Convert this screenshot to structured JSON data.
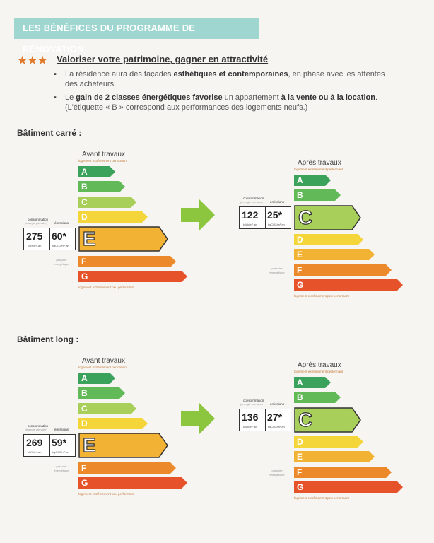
{
  "banner": "LES BÉNÉFICES DU PROGRAMME DE RÉNOVATION",
  "stars": "★★★",
  "section_title": "Valoriser votre patrimoine, gagner en attractivité",
  "bullet1": {
    "pre": "La résidence aura des façades ",
    "bold": "esthétiques et contemporaines",
    "post": ", en phase avec les attentes des acheteurs."
  },
  "bullet2": {
    "pre": "Le ",
    "bold1": "gain de 2 classes énergétiques favorise",
    "mid": " un appartement ",
    "bold2": "à la vente ou à la location",
    "post": ". (L'étiquette « B » correspond aux performances des logements neufs.)"
  },
  "buildings": [
    {
      "title": "Bâtiment carré :",
      "before": {
        "caption": "Avant travaux",
        "top_label": "logement extrêmement performant",
        "bottom_label": "logement extrêmement peu performant",
        "consumption": "275",
        "emissions": "60*",
        "class": "E"
      },
      "after": {
        "caption": "Après travaux",
        "top_label": "logement extrêmement performant",
        "bottom_label": "logement extrêmement peu performant",
        "consumption": "122",
        "emissions": "25*",
        "class": "C"
      }
    },
    {
      "title": "Bâtiment long :",
      "before": {
        "caption": "Avant travaux",
        "top_label": "logement extrêmement performant",
        "bottom_label": "logement extrêmement peu performant",
        "consumption": "269",
        "emissions": "59*",
        "class": "E"
      },
      "after": {
        "caption": "Après travaux",
        "top_label": "logement extrêmement performant",
        "bottom_label": "logement extrêmement peu performant",
        "consumption": "136",
        "emissions": "27*",
        "class": "C"
      }
    }
  ],
  "labels": {
    "consommation": "consommation",
    "energie_primaire": "(énergie primaire)",
    "emissions": "émissions",
    "unit_kwh": "kWh/m².an",
    "unit_co2": "kgCO2/m².an",
    "passoire": "passoire",
    "energetique": "énergétique"
  },
  "classes": [
    "A",
    "B",
    "C",
    "D",
    "E",
    "F",
    "G"
  ],
  "class_colors": {
    "A": "#3aa25a",
    "B": "#62b957",
    "C": "#a8cf5a",
    "D": "#f4d53a",
    "E": "#f2b233",
    "F": "#ec8a2b",
    "G": "#e6522a"
  },
  "accent": "#9fd6d0",
  "arrow_color": "#8bc63e"
}
